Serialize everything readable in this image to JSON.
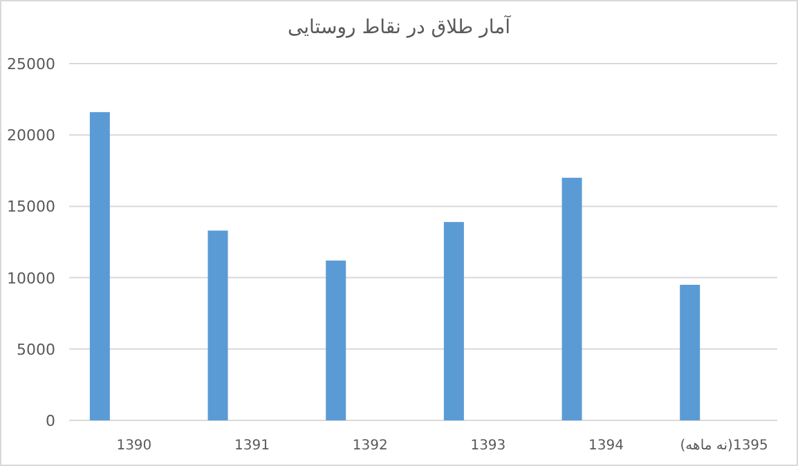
{
  "chart_data": {
    "type": "bar",
    "title": "آمار طلاق در نقاط روستایی",
    "categories": [
      "1390",
      "1391",
      "1392",
      "1393",
      "1394",
      "1395(نه ماهه)"
    ],
    "values": [
      21600,
      13300,
      11200,
      13900,
      17000,
      9500
    ],
    "color": "#5b9bd5",
    "ylim": [
      0,
      25000
    ],
    "yticks": [
      0,
      5000,
      10000,
      15000,
      20000,
      25000
    ],
    "grid": "y"
  }
}
